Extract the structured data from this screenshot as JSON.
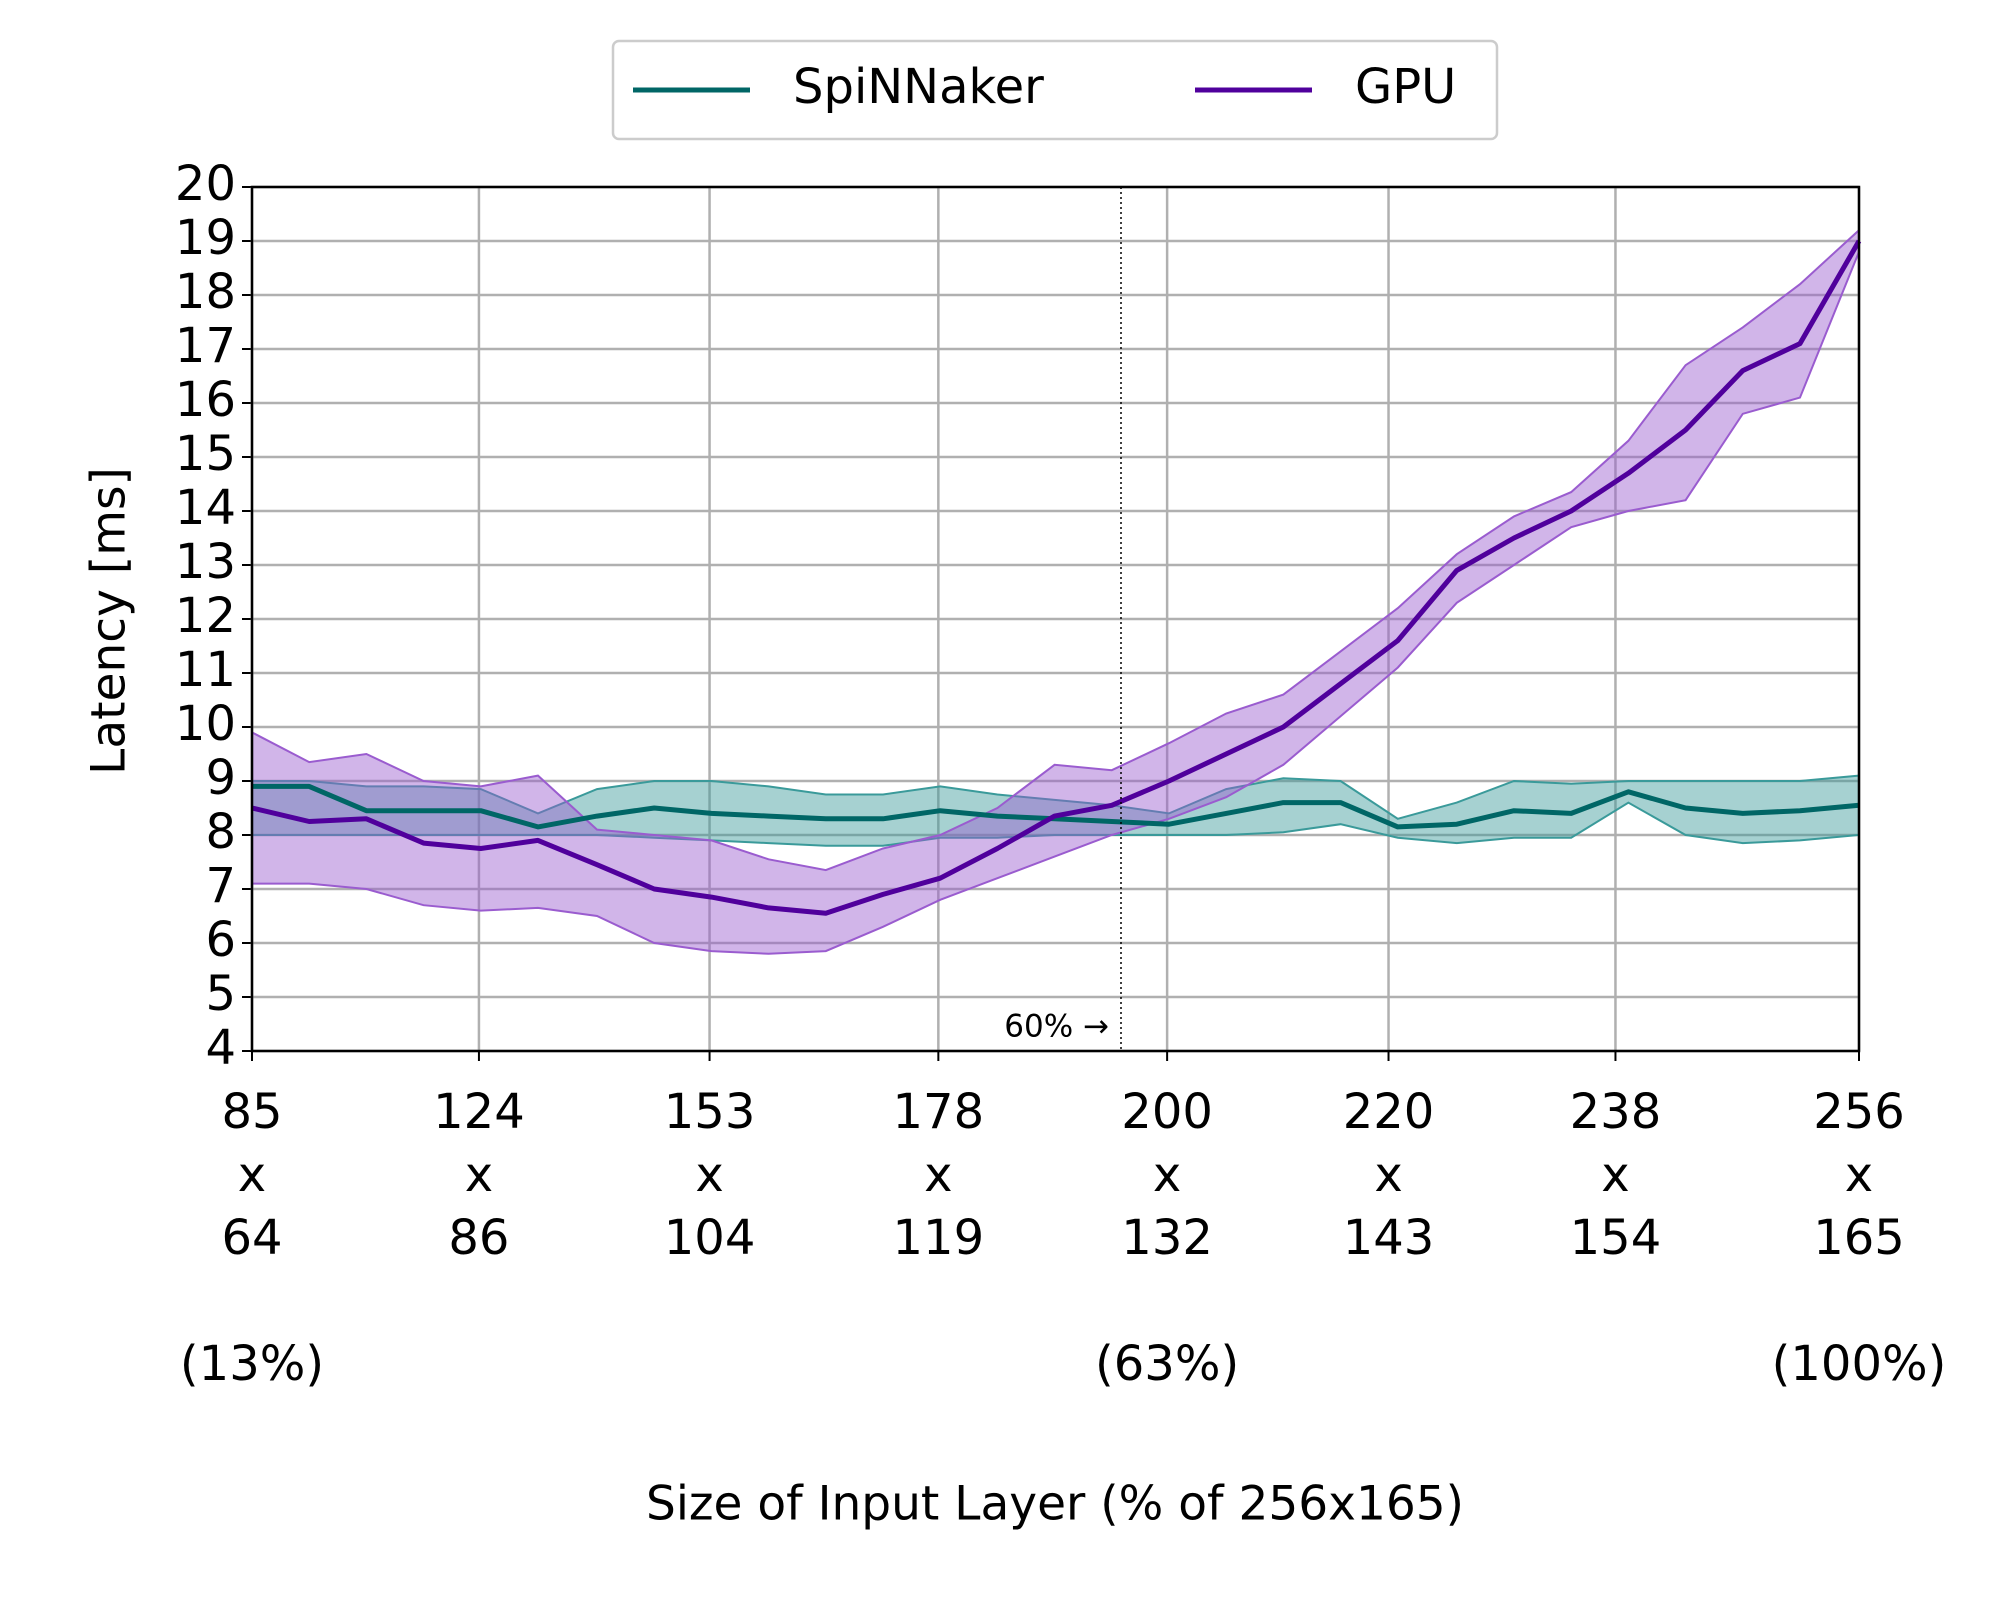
{
  "chart_data": {
    "type": "line",
    "x_label": "Size of Input Layer (% of 256x165)",
    "y_label": "Latency [ms]",
    "x": [
      12.9,
      16.0,
      19.1,
      22.2,
      25.3,
      28.4,
      31.6,
      34.7,
      37.8,
      40.9,
      44.0,
      47.1,
      50.2,
      53.3,
      56.4,
      59.5,
      62.6,
      65.7,
      68.8,
      71.9,
      75.0,
      78.2,
      81.3,
      84.4,
      87.5,
      90.6,
      93.7,
      96.8,
      100.0
    ],
    "series": [
      {
        "name": "SpiNNaker",
        "color": "#006666",
        "band_color": "#3a9a9a",
        "values": [
          8.9,
          8.9,
          8.45,
          8.45,
          8.45,
          8.15,
          8.35,
          8.5,
          8.4,
          8.35,
          8.3,
          8.3,
          8.45,
          8.35,
          8.3,
          8.25,
          8.2,
          8.4,
          8.6,
          8.6,
          8.15,
          8.2,
          8.45,
          8.4,
          8.8,
          8.5,
          8.4,
          8.45,
          8.55
        ],
        "lower": [
          8.0,
          8.0,
          8.0,
          8.0,
          8.0,
          8.0,
          8.0,
          7.95,
          7.9,
          7.85,
          7.8,
          7.8,
          7.95,
          7.95,
          8.0,
          8.0,
          8.0,
          8.0,
          8.05,
          8.2,
          7.95,
          7.85,
          7.95,
          7.95,
          8.6,
          8.0,
          7.85,
          7.9,
          8.0
        ],
        "upper": [
          9.0,
          9.0,
          8.9,
          8.9,
          8.85,
          8.4,
          8.85,
          9.0,
          9.0,
          8.9,
          8.75,
          8.75,
          8.9,
          8.75,
          8.65,
          8.55,
          8.4,
          8.85,
          9.05,
          9.0,
          8.3,
          8.6,
          9.0,
          8.95,
          9.0,
          9.0,
          9.0,
          9.0,
          9.1
        ]
      },
      {
        "name": "GPU",
        "color": "#50009c",
        "band_color": "#9a5ccf",
        "values": [
          8.5,
          8.25,
          8.3,
          7.85,
          7.75,
          7.9,
          7.45,
          7.0,
          6.85,
          6.65,
          6.55,
          6.9,
          7.2,
          7.75,
          8.35,
          8.55,
          9.0,
          9.5,
          10.0,
          10.8,
          11.6,
          12.9,
          13.5,
          14.0,
          14.7,
          15.5,
          16.6,
          17.1,
          19.0
        ],
        "lower": [
          7.1,
          7.1,
          7.0,
          6.7,
          6.6,
          6.65,
          6.5,
          6.0,
          5.85,
          5.8,
          5.85,
          6.3,
          6.8,
          7.2,
          7.6,
          8.0,
          8.3,
          8.7,
          9.3,
          10.2,
          11.1,
          12.3,
          13.0,
          13.7,
          14.0,
          14.2,
          15.8,
          16.1,
          18.8
        ],
        "upper": [
          9.9,
          9.35,
          9.5,
          9.0,
          8.9,
          9.1,
          8.1,
          8.0,
          7.9,
          7.55,
          7.35,
          7.75,
          8.0,
          8.5,
          9.3,
          9.2,
          9.7,
          10.25,
          10.6,
          11.4,
          12.2,
          13.2,
          13.9,
          14.35,
          15.3,
          16.7,
          17.4,
          18.2,
          19.2
        ]
      }
    ],
    "xlim": [
      12.9,
      100
    ],
    "ylim": [
      4,
      20
    ],
    "xticks": [
      {
        "value": 12.9,
        "label": "85\nx\n64\n\n(13%)"
      },
      {
        "value": 25.2,
        "label": "124\nx\n86"
      },
      {
        "value": 37.7,
        "label": "153\nx\n104"
      },
      {
        "value": 50.1,
        "label": "178\nx\n119"
      },
      {
        "value": 62.5,
        "label": "200\nx\n132\n\n(63%)"
      },
      {
        "value": 74.5,
        "label": "220\nx\n143"
      },
      {
        "value": 86.8,
        "label": "238\nx\n154"
      },
      {
        "value": 100,
        "label": "256\nx\n165\n\n(100%)"
      }
    ],
    "yticks": [
      4,
      5,
      6,
      7,
      8,
      9,
      10,
      11,
      12,
      13,
      14,
      15,
      16,
      17,
      18,
      19,
      20
    ],
    "grid": true,
    "legend": "top",
    "annotation": {
      "text": "60% →",
      "x": 60
    }
  }
}
